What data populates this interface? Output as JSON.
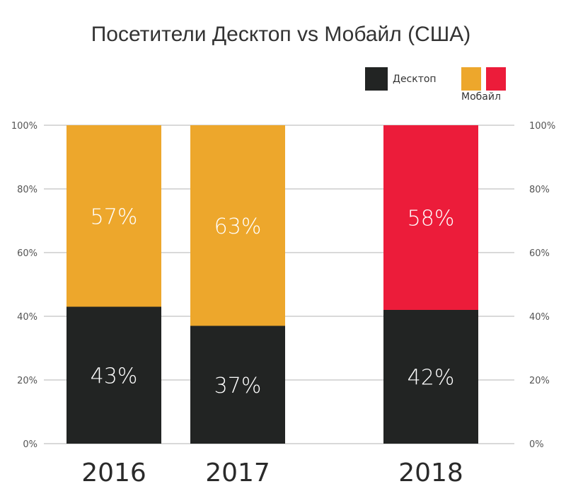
{
  "chart_data": {
    "type": "bar",
    "stacked": true,
    "title": "Посетители Десктоп vs Мобайл (США)",
    "categories": [
      "2016",
      "2017",
      "2018"
    ],
    "series": [
      {
        "name": "Десктоп",
        "values": [
          43,
          37,
          42
        ],
        "labels": [
          "43%",
          "37%",
          "42%"
        ],
        "colors": [
          "#222423",
          "#222423",
          "#222423"
        ]
      },
      {
        "name": "Мобайл",
        "values": [
          57,
          63,
          58
        ],
        "labels": [
          "57%",
          "63%",
          "58%"
        ],
        "colors": [
          "#EDA72C",
          "#EDA72C",
          "#EC1C3A"
        ]
      }
    ],
    "y_ticks": [
      "0%",
      "20%",
      "40%",
      "60%",
      "80%",
      "100%"
    ],
    "ylim": [
      0,
      100
    ],
    "grid": true,
    "legend": {
      "placement": "top-right",
      "items": [
        {
          "label": "Десктоп",
          "colors": [
            "#222423"
          ]
        },
        {
          "label": "Мобайл",
          "colors": [
            "#EDA72C",
            "#EC1C3A"
          ]
        }
      ]
    }
  }
}
